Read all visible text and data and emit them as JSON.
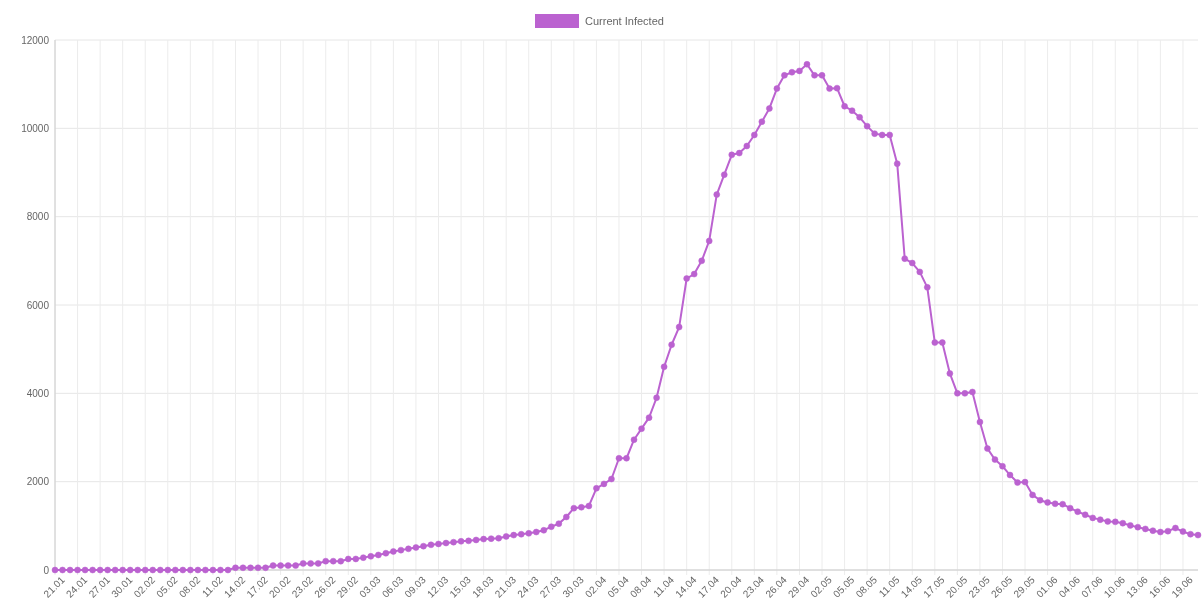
{
  "chart_data": {
    "type": "line",
    "categories": [
      "21.01",
      null,
      null,
      "24.01",
      null,
      null,
      "27.01",
      null,
      null,
      "30.01",
      null,
      null,
      "02.02",
      null,
      null,
      "05.02",
      null,
      null,
      "08.02",
      null,
      null,
      "11.02",
      null,
      null,
      "14.02",
      null,
      null,
      "17.02",
      null,
      null,
      "20.02",
      null,
      null,
      "23.02",
      null,
      null,
      "26.02",
      null,
      null,
      "29.02",
      null,
      null,
      "03.03",
      null,
      null,
      "06.03",
      null,
      null,
      "09.03",
      null,
      null,
      "12.03",
      null,
      null,
      "15.03",
      null,
      null,
      "18.03",
      null,
      null,
      "21.03",
      null,
      null,
      "24.03",
      null,
      null,
      "27.03",
      null,
      null,
      "30.03",
      null,
      null,
      "02.04",
      null,
      null,
      "05.04",
      null,
      null,
      "08.04",
      null,
      null,
      "11.04",
      null,
      null,
      "14.04",
      null,
      null,
      "17.04",
      null,
      null,
      "20.04",
      null,
      null,
      "23.04",
      null,
      null,
      "26.04",
      null,
      null,
      "29.04",
      null,
      null,
      "02.05",
      null,
      null,
      "05.05",
      null,
      null,
      "08.05",
      null,
      null,
      "11.05",
      null,
      null,
      "14.05",
      null,
      null,
      "17.05",
      null,
      null,
      "20.05",
      null,
      null,
      "23.05",
      null,
      null,
      "26.05",
      null,
      null,
      "29.05",
      null,
      null,
      "01.06",
      null,
      null,
      "04.06",
      null,
      null,
      "07.06",
      null,
      null,
      "10.06",
      null,
      null,
      "13.06",
      null,
      null,
      "16.06",
      null,
      null,
      "19.06",
      null,
      null
    ],
    "series": [
      {
        "name": "Current Infected",
        "color": "#bb62d0",
        "values": [
          0,
          0,
          0,
          0,
          0,
          0,
          0,
          0,
          0,
          0,
          0,
          0,
          0,
          0,
          0,
          0,
          0,
          0,
          0,
          0,
          0,
          0,
          0,
          0,
          50,
          50,
          50,
          50,
          50,
          100,
          100,
          100,
          100,
          150,
          150,
          150,
          200,
          200,
          200,
          250,
          250,
          280,
          310,
          340,
          380,
          420,
          450,
          480,
          510,
          540,
          570,
          590,
          610,
          630,
          650,
          660,
          680,
          700,
          710,
          720,
          760,
          790,
          810,
          830,
          860,
          900,
          980,
          1050,
          1200,
          1400,
          1420,
          1450,
          1850,
          1950,
          2060,
          2530,
          2530,
          2950,
          3200,
          3450,
          3900,
          4600,
          5100,
          5500,
          6600,
          6700,
          7000,
          7450,
          8500,
          8950,
          9400,
          9440,
          9600,
          9850,
          10150,
          10450,
          10900,
          11200,
          11270,
          11300,
          11450,
          11200,
          11200,
          10900,
          10910,
          10500,
          10400,
          10250,
          10050,
          9880,
          9850,
          9850,
          9200,
          7050,
          6950,
          6750,
          6400,
          5150,
          5150,
          4450,
          4000,
          4000,
          4030,
          3350,
          2750,
          2500,
          2350,
          2150,
          1980,
          1990,
          1700,
          1580,
          1530,
          1500,
          1490,
          1400,
          1320,
          1250,
          1180,
          1140,
          1100,
          1090,
          1060,
          1010,
          970,
          930,
          890,
          860,
          880,
          950,
          870,
          810,
          790
        ]
      }
    ],
    "ylim": [
      0,
      12000
    ],
    "yticks": [
      0,
      2000,
      4000,
      6000,
      8000,
      10000,
      12000
    ],
    "grid": true,
    "legend": "top",
    "marker": "circle"
  }
}
